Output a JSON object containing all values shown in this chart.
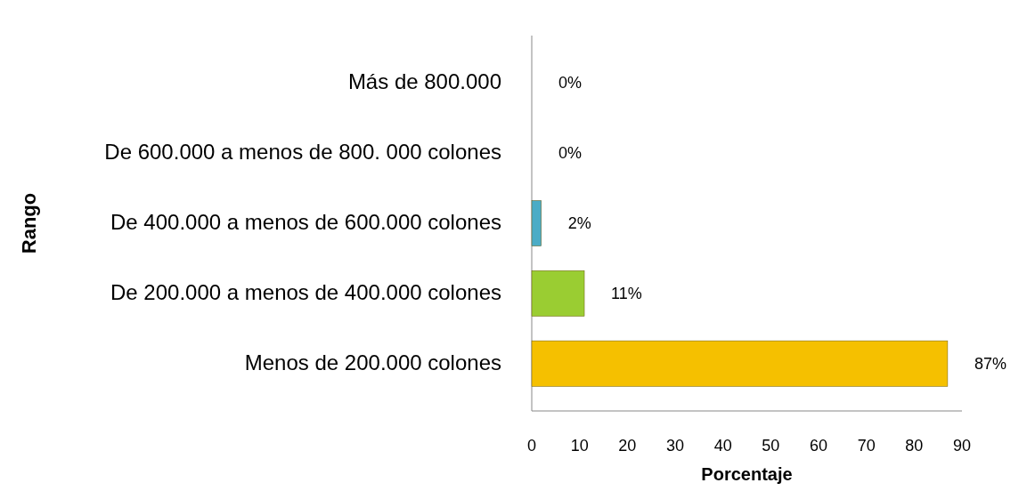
{
  "chart_data": {
    "type": "bar",
    "orientation": "horizontal",
    "xlabel": "Porcentaje",
    "ylabel": "Rango",
    "categories": [
      "Más de 800.000",
      "De 600.000 a menos de 800. 000 colones",
      "De 400.000 a menos de 600.000 colones",
      "De 200.000 a menos de 400.000 colones",
      "Menos de 200.000 colones"
    ],
    "values": [
      0,
      0,
      2,
      11,
      87
    ],
    "colors": [
      "#8b5a83",
      "#1f3a93",
      "#4bacc6",
      "#9acd32",
      "#f5c000"
    ],
    "value_labels": [
      "0%",
      "0%",
      "2%",
      "11%",
      "87%"
    ],
    "xlim": [
      0,
      90
    ],
    "xticks": [
      0,
      10,
      20,
      30,
      40,
      50,
      60,
      70,
      80,
      90
    ],
    "grid": false
  }
}
